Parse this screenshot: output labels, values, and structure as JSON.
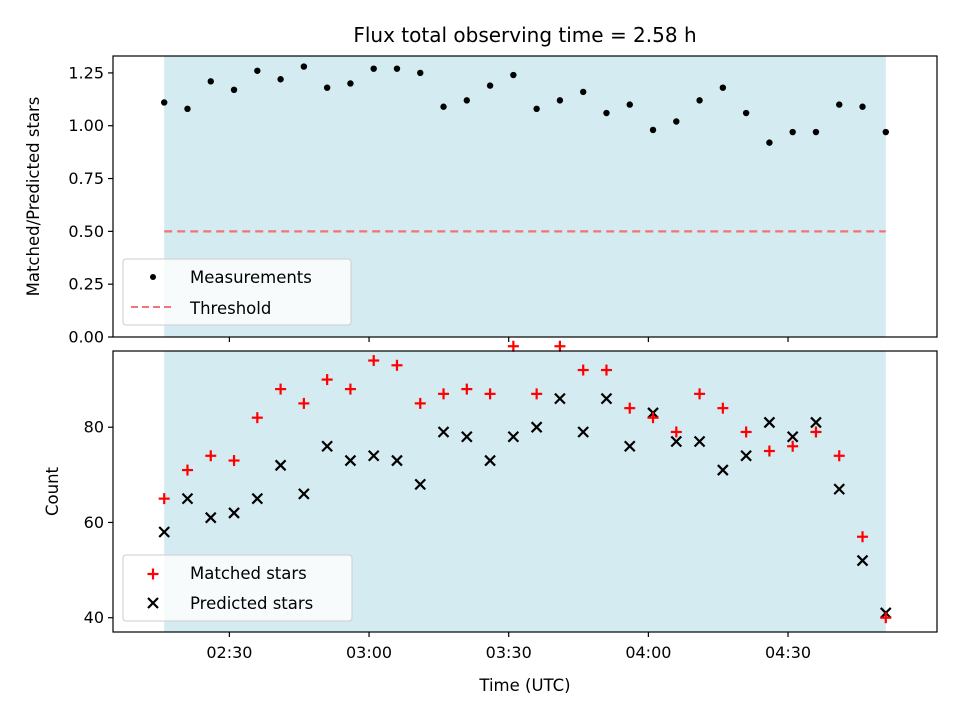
{
  "chart_data": [
    {
      "type": "scatter",
      "title": "Flux total observing time = 2.58 h",
      "ylabel": "Matched/Predicted stars",
      "xlabel": "",
      "ylim": [
        0,
        1.33
      ],
      "y_ticks": [
        "0.00",
        "0.25",
        "0.50",
        "0.75",
        "1.00",
        "1.25"
      ],
      "grid": false,
      "legend_position": "lower-left",
      "shaded_interval": [
        "02:16",
        "04:51"
      ],
      "colors": {
        "measurements": "#000000",
        "threshold": "#f07575",
        "shade": "#d4ebf1"
      },
      "x": [
        "02:16",
        "02:21",
        "02:26",
        "02:31",
        "02:36",
        "02:41",
        "02:46",
        "02:51",
        "02:56",
        "03:01",
        "03:06",
        "03:11",
        "03:16",
        "03:21",
        "03:26",
        "03:31",
        "03:36",
        "03:41",
        "03:46",
        "03:51",
        "03:56",
        "04:01",
        "04:06",
        "04:11",
        "04:16",
        "04:21",
        "04:26",
        "04:31",
        "04:36",
        "04:41",
        "04:46",
        "04:51"
      ],
      "series": [
        {
          "name": "Measurements",
          "values": [
            1.11,
            1.08,
            1.21,
            1.17,
            1.26,
            1.22,
            1.28,
            1.18,
            1.2,
            1.27,
            1.27,
            1.25,
            1.09,
            1.12,
            1.19,
            1.24,
            1.08,
            1.12,
            1.16,
            1.06,
            1.1,
            0.98,
            1.02,
            1.12,
            1.18,
            1.06,
            0.92,
            0.97,
            0.97,
            1.1,
            1.09,
            0.97
          ]
        },
        {
          "name": "Threshold",
          "values": [
            0.5,
            0.5
          ]
        }
      ]
    },
    {
      "type": "scatter",
      "title": "",
      "ylabel": "Count",
      "xlabel": "Time (UTC)",
      "ylim": [
        37,
        96
      ],
      "y_ticks": [
        "40",
        "60",
        "80"
      ],
      "x_ticks": [
        "02:30",
        "03:00",
        "03:30",
        "04:00",
        "04:30"
      ],
      "grid": false,
      "legend_position": "lower-left",
      "shaded_interval": [
        "02:16",
        "04:51"
      ],
      "colors": {
        "matched": "#ff0000",
        "predicted": "#000000",
        "shade": "#d4ebf1"
      },
      "x": [
        "02:16",
        "02:21",
        "02:26",
        "02:31",
        "02:36",
        "02:41",
        "02:46",
        "02:51",
        "02:56",
        "03:01",
        "03:06",
        "03:11",
        "03:16",
        "03:21",
        "03:26",
        "03:31",
        "03:36",
        "03:41",
        "03:46",
        "03:51",
        "03:56",
        "04:01",
        "04:06",
        "04:11",
        "04:16",
        "04:21",
        "04:26",
        "04:31",
        "04:36",
        "04:41",
        "04:46",
        "04:51"
      ],
      "series": [
        {
          "name": "Matched stars",
          "values": [
            65,
            71,
            74,
            73,
            82,
            88,
            85,
            90,
            88,
            94,
            93,
            85,
            87,
            88,
            87,
            97,
            87,
            97,
            92,
            92,
            84,
            82,
            79,
            87,
            84,
            79,
            75,
            76,
            79,
            74,
            57,
            40
          ]
        },
        {
          "name": "Predicted stars",
          "values": [
            58,
            65,
            61,
            62,
            65,
            72,
            66,
            76,
            73,
            74,
            73,
            68,
            79,
            78,
            73,
            78,
            80,
            86,
            79,
            86,
            76,
            83,
            77,
            77,
            71,
            74,
            81,
            78,
            81,
            67,
            52,
            41
          ]
        }
      ]
    }
  ]
}
